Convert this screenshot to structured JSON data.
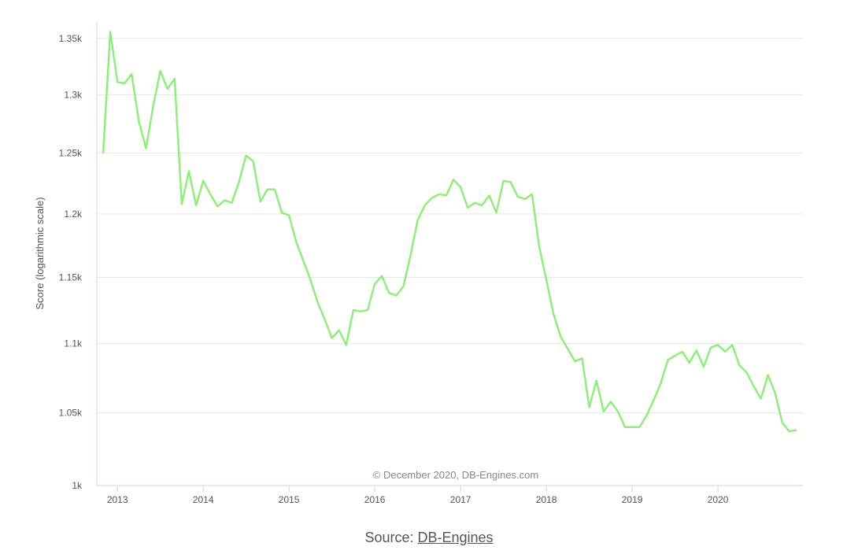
{
  "chart_data": {
    "type": "line",
    "ylabel": "Score (logarithmic scale)",
    "yscale": "log",
    "ylim": [
      1000,
      1365
    ],
    "yticks": [
      1000,
      1050,
      1100,
      1150,
      1200,
      1250,
      1300,
      1350
    ],
    "ytick_labels": [
      "1k",
      "1.05k",
      "1.1k",
      "1.15k",
      "1.2k",
      "1.25k",
      "1.3k",
      "1.35k"
    ],
    "xlim": [
      "2012-11",
      "2020-12"
    ],
    "xtick_labels": [
      "2013",
      "2014",
      "2015",
      "2016",
      "2017",
      "2018",
      "2019",
      "2020"
    ],
    "grid": true,
    "line_color": "#90ed7d",
    "credit": "© December 2020, DB-Engines.com",
    "series": [
      {
        "x": [
          "2012-11",
          "2012-12",
          "2013-01",
          "2013-02",
          "2013-03",
          "2013-04",
          "2013-05",
          "2013-06",
          "2013-07",
          "2013-08",
          "2013-09",
          "2013-10",
          "2013-11",
          "2013-12",
          "2014-01",
          "2014-02",
          "2014-03",
          "2014-04",
          "2014-05",
          "2014-06",
          "2014-07",
          "2014-08",
          "2014-09",
          "2014-10",
          "2014-11",
          "2014-12",
          "2015-01",
          "2015-02",
          "2015-03",
          "2015-04",
          "2015-05",
          "2015-06",
          "2015-07",
          "2015-08",
          "2015-09",
          "2015-10",
          "2015-11",
          "2015-12",
          "2016-01",
          "2016-02",
          "2016-03",
          "2016-04",
          "2016-05",
          "2016-06",
          "2016-07",
          "2016-08",
          "2016-09",
          "2016-10",
          "2016-11",
          "2016-12",
          "2017-01",
          "2017-02",
          "2017-03",
          "2017-04",
          "2017-05",
          "2017-06",
          "2017-07",
          "2017-08",
          "2017-09",
          "2017-10",
          "2017-11",
          "2017-12",
          "2018-01",
          "2018-02",
          "2018-03",
          "2018-04",
          "2018-05",
          "2018-06",
          "2018-07",
          "2018-08",
          "2018-09",
          "2018-10",
          "2018-11",
          "2018-12",
          "2019-01",
          "2019-02",
          "2019-03",
          "2019-04",
          "2019-05",
          "2019-06",
          "2019-07",
          "2019-08",
          "2019-09",
          "2019-10",
          "2019-11",
          "2019-12",
          "2020-01",
          "2020-02",
          "2020-03",
          "2020-04",
          "2020-05",
          "2020-06",
          "2020-07",
          "2020-08",
          "2020-09",
          "2020-10",
          "2020-11",
          "2020-12"
        ],
        "values": [
          1250,
          1356,
          1311,
          1310,
          1318,
          1277,
          1254,
          1290,
          1321,
          1305,
          1314,
          1208,
          1235,
          1207,
          1227,
          1216,
          1206,
          1211,
          1209,
          1226,
          1248,
          1243,
          1210,
          1220,
          1220,
          1201,
          1199,
          1178,
          1163,
          1148,
          1131,
          1118,
          1104,
          1110,
          1099,
          1125,
          1124,
          1125,
          1145,
          1151,
          1138,
          1136,
          1143,
          1167,
          1195,
          1207,
          1213,
          1216,
          1215,
          1228,
          1222,
          1205,
          1209,
          1207,
          1215,
          1201,
          1227,
          1226,
          1214,
          1212,
          1216,
          1174,
          1148,
          1122,
          1105,
          1096,
          1087,
          1089,
          1054,
          1073,
          1051,
          1058,
          1051,
          1040,
          1040,
          1040,
          1048,
          1059,
          1071,
          1088,
          1091,
          1094,
          1086,
          1095,
          1083,
          1097,
          1099,
          1094,
          1099,
          1084,
          1079,
          1069,
          1060,
          1077,
          1064,
          1043,
          1037,
          1038
        ]
      }
    ]
  },
  "source": {
    "prefix": "Source: ",
    "link_text": "DB-Engines"
  }
}
